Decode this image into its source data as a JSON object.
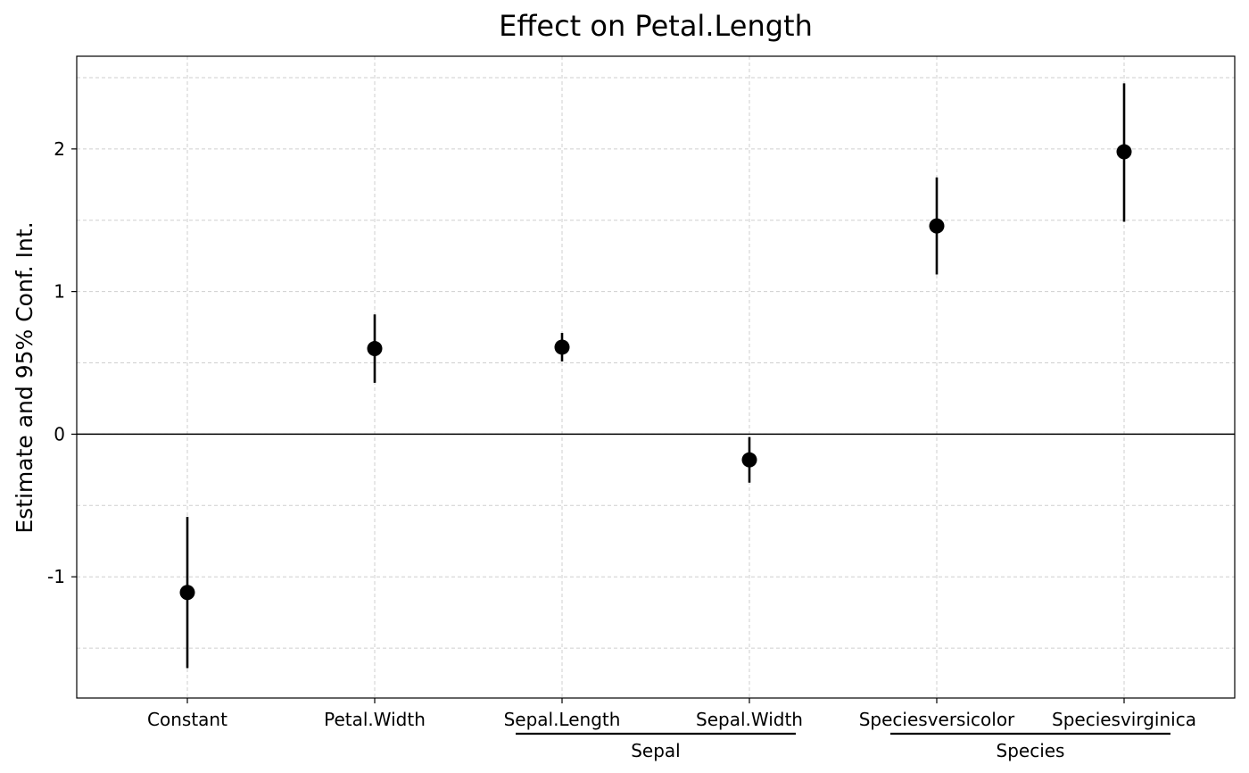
{
  "chart_data": {
    "type": "scatter",
    "title": "Effect on Petal.Length",
    "xlabel": "",
    "ylabel": "Estimate and 95% Conf. Int.",
    "ylim": [
      -1.85,
      2.65
    ],
    "yticks": [
      -1,
      0,
      1,
      2
    ],
    "ytick_labels": [
      "-1",
      "0",
      "1",
      "2"
    ],
    "minor_grid": [
      -1.5,
      -0.5,
      0.5,
      1.5,
      2.5
    ],
    "grid": true,
    "reference_line": 0,
    "categories": [
      "Constant",
      "Petal.Width",
      "Sepal.Length",
      "Sepal.Width",
      "Speciesversicolor",
      "Speciesvirginica"
    ],
    "estimates": [
      -1.11,
      0.6,
      0.61,
      -0.18,
      1.46,
      1.98
    ],
    "ci_low": [
      -1.64,
      0.36,
      0.51,
      -0.34,
      1.12,
      1.49
    ],
    "ci_high": [
      -0.58,
      0.84,
      0.71,
      -0.02,
      1.8,
      2.46
    ],
    "groups": [
      {
        "label": "Sepal",
        "members": [
          "Sepal.Length",
          "Sepal.Width"
        ]
      },
      {
        "label": "Species",
        "members": [
          "Speciesversicolor",
          "Speciesvirginica"
        ]
      }
    ]
  }
}
